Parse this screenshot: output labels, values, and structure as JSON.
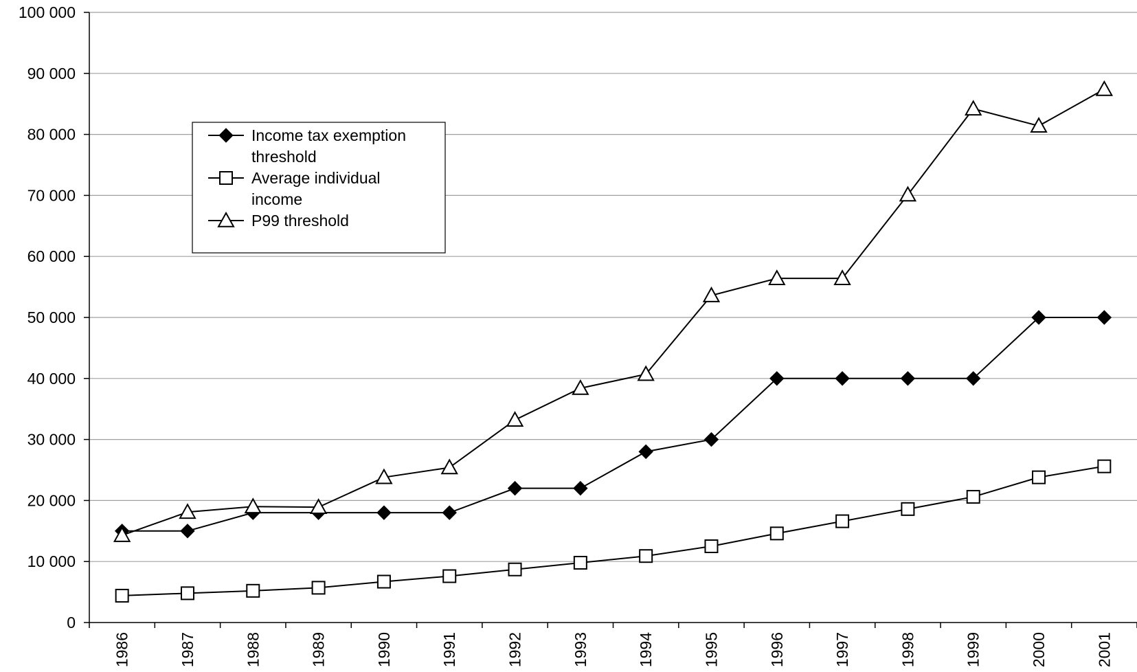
{
  "chart_data": {
    "type": "line",
    "title": "",
    "xlabel": "",
    "ylabel": "",
    "ylim": [
      0,
      100000
    ],
    "yticks": [
      0,
      10000,
      20000,
      30000,
      40000,
      50000,
      60000,
      70000,
      80000,
      90000,
      100000
    ],
    "ytick_labels": [
      "0",
      "10 000",
      "20 000",
      "30 000",
      "40 000",
      "50 000",
      "60 000",
      "70 000",
      "80 000",
      "90 000",
      "100 000"
    ],
    "categories": [
      "1986",
      "1987",
      "1988",
      "1989",
      "1990",
      "1991",
      "1992",
      "1993",
      "1994",
      "1995",
      "1996",
      "1997",
      "1998",
      "1999",
      "2000",
      "2001"
    ],
    "grid": true,
    "legend_position": "upper-left",
    "series": [
      {
        "name": "Income tax exemption threshold",
        "legend_lines": [
          "Income tax exemption",
          "threshold"
        ],
        "marker": "filled-diamond",
        "values": [
          15000,
          15000,
          18000,
          18000,
          18000,
          18000,
          22000,
          22000,
          28000,
          30000,
          40000,
          40000,
          40000,
          40000,
          50000,
          50000
        ]
      },
      {
        "name": "Average individual income",
        "legend_lines": [
          "Average individual",
          "income"
        ],
        "marker": "open-square",
        "values": [
          4400,
          4800,
          5200,
          5700,
          6700,
          7600,
          8700,
          9800,
          10900,
          12500,
          14600,
          16600,
          18600,
          20600,
          23800,
          25600
        ]
      },
      {
        "name": "P99 threshold",
        "legend_lines": [
          "P99 threshold"
        ],
        "marker": "open-triangle",
        "values": [
          14300,
          18100,
          19000,
          18900,
          23800,
          25400,
          33200,
          38400,
          40700,
          53600,
          56400,
          56400,
          70100,
          84200,
          81400,
          87400
        ]
      }
    ]
  },
  "colors": {
    "line": "#000000",
    "grid": "#a0a0a0",
    "background": "#ffffff"
  }
}
